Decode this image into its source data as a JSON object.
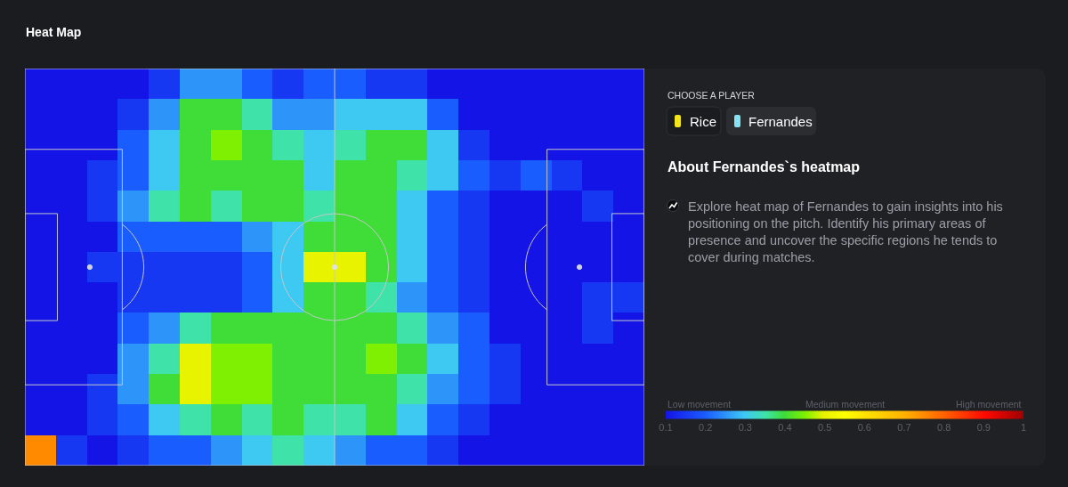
{
  "chart_data": {
    "type": "heatmap",
    "title": "Heat Map",
    "categories": [
      null,
      null,
      null,
      null,
      null,
      null,
      null,
      null,
      null,
      null,
      null,
      null,
      null,
      null,
      null,
      null,
      null,
      null,
      null,
      null
    ],
    "y_categories": [
      null,
      null,
      null,
      null,
      null,
      null,
      null,
      null,
      null,
      null,
      null,
      null,
      null
    ],
    "cells": [
      [
        0.1,
        0.1,
        0.1,
        0.1,
        0.15,
        0.25,
        0.25,
        0.2,
        0.15,
        0.2,
        0.2,
        0.15,
        0.15,
        0.1,
        0.1,
        0.1,
        0.1,
        0.1,
        0.1,
        0.1
      ],
      [
        0.1,
        0.1,
        0.1,
        0.15,
        0.25,
        0.4,
        0.4,
        0.35,
        0.25,
        0.25,
        0.3,
        0.3,
        0.3,
        0.2,
        0.1,
        0.1,
        0.1,
        0.1,
        0.1,
        0.1
      ],
      [
        0.1,
        0.1,
        0.1,
        0.2,
        0.3,
        0.4,
        0.45,
        0.4,
        0.35,
        0.3,
        0.35,
        0.4,
        0.4,
        0.3,
        0.15,
        0.1,
        0.1,
        0.1,
        0.1,
        0.1
      ],
      [
        0.1,
        0.1,
        0.15,
        0.2,
        0.3,
        0.4,
        0.4,
        0.4,
        0.4,
        0.3,
        0.4,
        0.4,
        0.35,
        0.3,
        0.2,
        0.15,
        0.2,
        0.15,
        0.1,
        0.1
      ],
      [
        0.1,
        0.1,
        0.15,
        0.25,
        0.35,
        0.4,
        0.35,
        0.4,
        0.4,
        0.35,
        0.4,
        0.4,
        0.3,
        0.2,
        0.15,
        0.1,
        0.1,
        0.1,
        0.15,
        0.1
      ],
      [
        0.1,
        0.1,
        0.1,
        0.2,
        0.2,
        0.2,
        0.2,
        0.25,
        0.3,
        0.4,
        0.4,
        0.4,
        0.3,
        0.2,
        0.15,
        0.1,
        0.1,
        0.1,
        0.1,
        0.1
      ],
      [
        0.1,
        0.1,
        0.15,
        0.15,
        0.15,
        0.15,
        0.15,
        0.2,
        0.3,
        0.5,
        0.5,
        0.4,
        0.3,
        0.2,
        0.15,
        0.1,
        0.1,
        0.1,
        0.1,
        0.1
      ],
      [
        0.1,
        0.1,
        0.1,
        0.15,
        0.15,
        0.15,
        0.15,
        0.2,
        0.3,
        0.4,
        0.4,
        0.35,
        0.25,
        0.2,
        0.15,
        0.1,
        0.1,
        0.1,
        0.15,
        0.15
      ],
      [
        0.1,
        0.1,
        0.1,
        0.2,
        0.25,
        0.35,
        0.4,
        0.4,
        0.4,
        0.4,
        0.4,
        0.4,
        0.35,
        0.25,
        0.2,
        0.1,
        0.1,
        0.1,
        0.15,
        0.1
      ],
      [
        0.1,
        0.1,
        0.1,
        0.25,
        0.35,
        0.5,
        0.45,
        0.45,
        0.4,
        0.4,
        0.4,
        0.45,
        0.4,
        0.3,
        0.2,
        0.15,
        0.1,
        0.1,
        0.1,
        0.1
      ],
      [
        0.1,
        0.1,
        0.15,
        0.25,
        0.4,
        0.5,
        0.45,
        0.45,
        0.4,
        0.4,
        0.4,
        0.4,
        0.35,
        0.25,
        0.2,
        0.15,
        0.1,
        0.1,
        0.1,
        0.1
      ],
      [
        0.1,
        0.1,
        0.15,
        0.2,
        0.3,
        0.35,
        0.4,
        0.35,
        0.4,
        0.35,
        0.35,
        0.4,
        0.3,
        0.2,
        0.15,
        0.1,
        0.1,
        0.1,
        0.1,
        0.1
      ],
      [
        0.75,
        0.15,
        0.1,
        0.15,
        0.2,
        0.2,
        0.25,
        0.3,
        0.35,
        0.3,
        0.25,
        0.2,
        0.2,
        0.15,
        0.1,
        0.1,
        0.1,
        0.1,
        0.1,
        0.1
      ]
    ],
    "clim": [
      0.1,
      1
    ],
    "cticks": [
      0.1,
      0.2,
      0.3,
      0.4,
      0.5,
      0.6,
      0.7,
      0.8,
      0.9,
      1
    ],
    "annotations": [
      "CHOOSE A PLAYER",
      "Rice",
      "Fernandes",
      "About Fernandes`s heatmap",
      "Explore heat map of Fernandes to gain insights into his positioning on the pitch. Identify his primary areas of presence and uncover the specific regions he tends to cover during matches.",
      "Low movement",
      "Medium movement",
      "High movement"
    ]
  }
}
